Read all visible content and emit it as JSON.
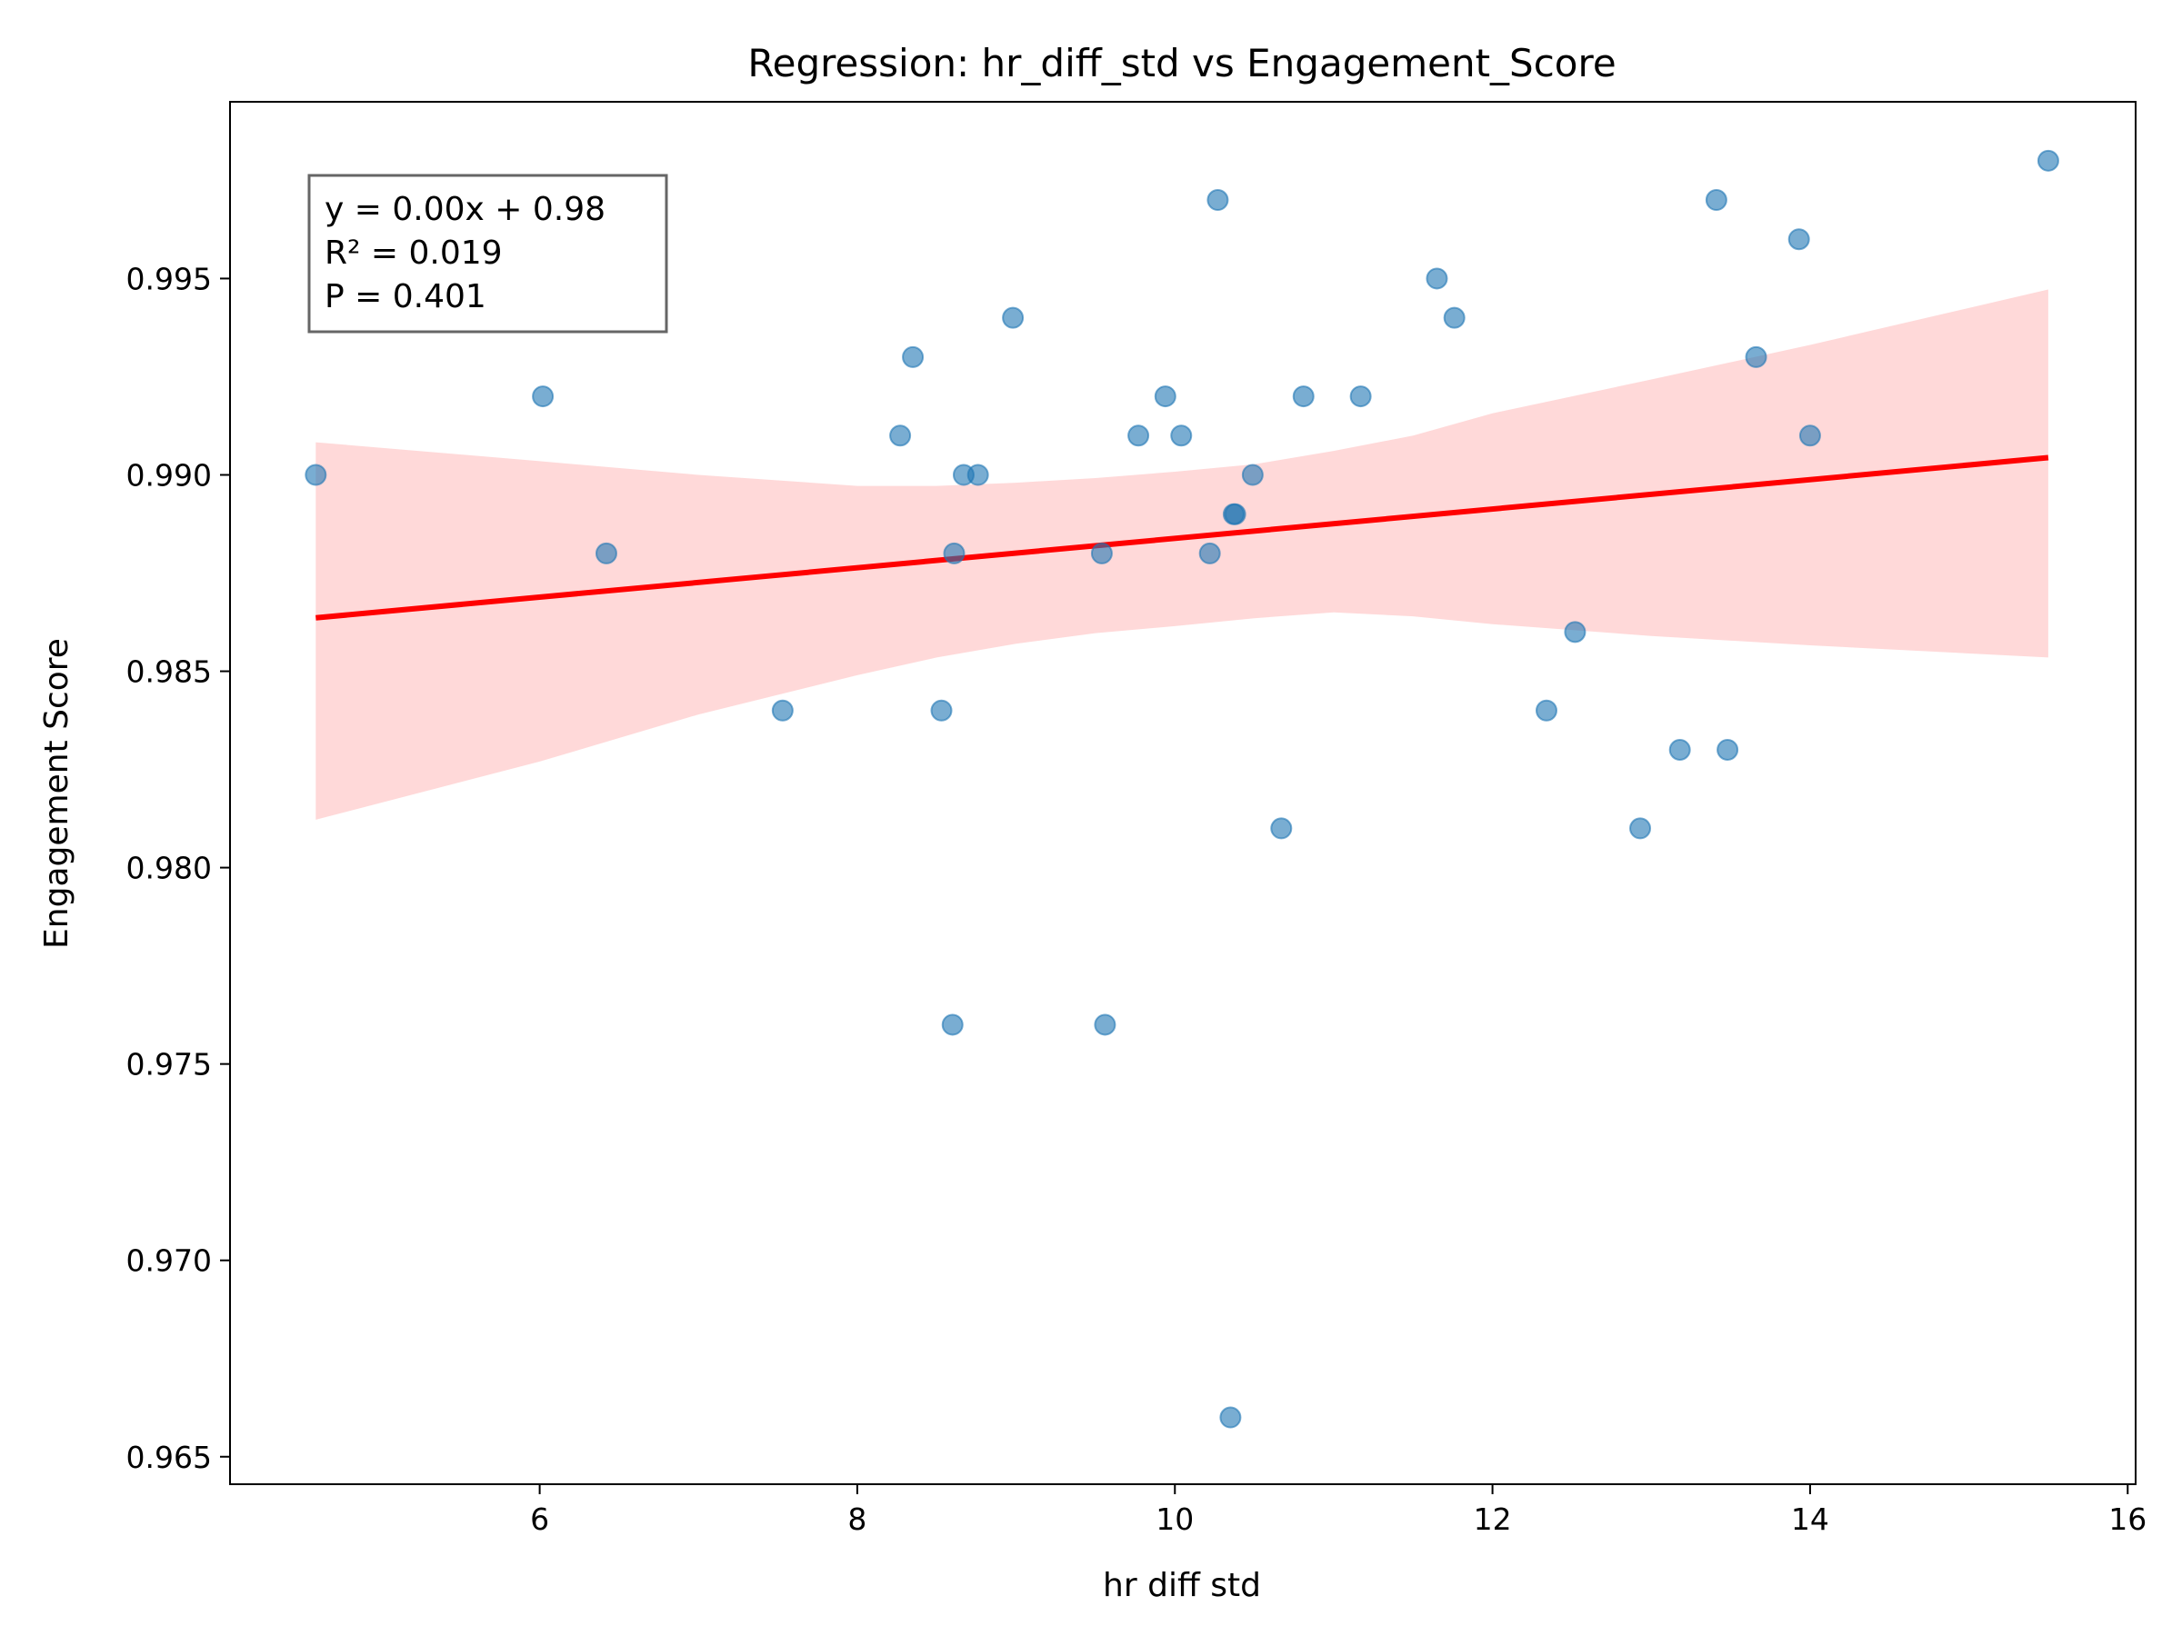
{
  "chart_data": {
    "type": "scatter",
    "title": "Regression: hr_diff_std vs Engagement_Score",
    "xlabel": "hr diff std",
    "ylabel": "Engagement Score",
    "xlim": [
      4.05,
      16.05
    ],
    "ylim": [
      0.9643,
      0.9995
    ],
    "xticks": [
      6,
      8,
      10,
      12,
      14,
      16
    ],
    "xtick_labels": [
      "6",
      "8",
      "10",
      "12",
      "14",
      "16"
    ],
    "yticks": [
      0.965,
      0.97,
      0.975,
      0.98,
      0.985,
      0.99,
      0.995
    ],
    "ytick_labels": [
      "0.965",
      "0.970",
      "0.975",
      "0.980",
      "0.985",
      "0.990",
      "0.995"
    ],
    "grid": false,
    "points": [
      {
        "x": 4.59,
        "y": 0.99
      },
      {
        "x": 6.02,
        "y": 0.992
      },
      {
        "x": 6.42,
        "y": 0.988
      },
      {
        "x": 7.53,
        "y": 0.984
      },
      {
        "x": 8.27,
        "y": 0.991
      },
      {
        "x": 8.35,
        "y": 0.993
      },
      {
        "x": 8.53,
        "y": 0.984
      },
      {
        "x": 8.6,
        "y": 0.976
      },
      {
        "x": 8.61,
        "y": 0.988
      },
      {
        "x": 8.67,
        "y": 0.99
      },
      {
        "x": 8.76,
        "y": 0.99
      },
      {
        "x": 8.98,
        "y": 0.994
      },
      {
        "x": 9.54,
        "y": 0.988
      },
      {
        "x": 9.56,
        "y": 0.976
      },
      {
        "x": 9.77,
        "y": 0.991
      },
      {
        "x": 9.94,
        "y": 0.992
      },
      {
        "x": 10.04,
        "y": 0.991
      },
      {
        "x": 10.22,
        "y": 0.988
      },
      {
        "x": 10.27,
        "y": 0.997
      },
      {
        "x": 10.35,
        "y": 0.966
      },
      {
        "x": 10.37,
        "y": 0.989
      },
      {
        "x": 10.38,
        "y": 0.989
      },
      {
        "x": 10.49,
        "y": 0.99
      },
      {
        "x": 10.67,
        "y": 0.981
      },
      {
        "x": 10.81,
        "y": 0.992
      },
      {
        "x": 11.17,
        "y": 0.992
      },
      {
        "x": 11.65,
        "y": 0.995
      },
      {
        "x": 11.76,
        "y": 0.994
      },
      {
        "x": 12.34,
        "y": 0.984
      },
      {
        "x": 12.52,
        "y": 0.986
      },
      {
        "x": 12.93,
        "y": 0.981
      },
      {
        "x": 13.18,
        "y": 0.983
      },
      {
        "x": 13.41,
        "y": 0.997
      },
      {
        "x": 13.48,
        "y": 0.983
      },
      {
        "x": 13.66,
        "y": 0.993
      },
      {
        "x": 13.93,
        "y": 0.996
      },
      {
        "x": 14.0,
        "y": 0.991
      },
      {
        "x": 15.5,
        "y": 0.998
      }
    ],
    "regression_line": {
      "x": [
        4.59,
        15.5
      ],
      "y": [
        0.98636,
        0.99044
      ]
    },
    "confidence_band": {
      "x": [
        4.59,
        6.0,
        7.0,
        8.0,
        8.5,
        9.0,
        9.5,
        10.0,
        10.5,
        11.0,
        11.5,
        12.0,
        13.0,
        14.0,
        15.5
      ],
      "upper": [
        0.99083,
        0.99035,
        0.99,
        0.98972,
        0.98972,
        0.9898,
        0.98992,
        0.99008,
        0.99027,
        0.99061,
        0.991,
        0.99157,
        0.99243,
        0.99331,
        0.99472
      ],
      "lower": [
        0.98122,
        0.9827,
        0.9839,
        0.9849,
        0.98535,
        0.9857,
        0.98597,
        0.98615,
        0.98635,
        0.9865,
        0.9864,
        0.9862,
        0.9859,
        0.98566,
        0.98535
      ]
    },
    "stats_box": {
      "lines": [
        "y = 0.00x + 0.98",
        "R² = 0.019",
        "P = 0.401"
      ]
    },
    "colors": {
      "points": "#1f77b4",
      "line": "#ff0000",
      "band": "#ffcccc"
    }
  }
}
